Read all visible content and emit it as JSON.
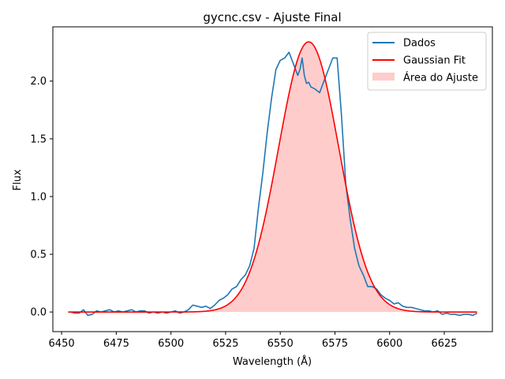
{
  "chart_data": {
    "type": "line",
    "title": "gycnc.csv - Ajuste Final",
    "xlabel": "Wavelength (Å)",
    "ylabel": "Flux",
    "xlim": [
      6446,
      6647
    ],
    "ylim": [
      -0.17,
      2.47
    ],
    "xticks": [
      6450,
      6475,
      6500,
      6525,
      6550,
      6575,
      6600,
      6625
    ],
    "yticks": [
      0.0,
      0.5,
      1.0,
      1.5,
      2.0
    ],
    "grid": false,
    "legend_position": "top-right",
    "series": [
      {
        "name": "Dados",
        "kind": "line",
        "color": "#1f77b4",
        "x": [
          6454,
          6456,
          6458,
          6460,
          6462,
          6464,
          6466,
          6468,
          6470,
          6472,
          6474,
          6476,
          6478,
          6480,
          6482,
          6484,
          6486,
          6488,
          6490,
          6492,
          6494,
          6496,
          6498,
          6500,
          6502,
          6504,
          6506,
          6508,
          6510,
          6512,
          6514,
          6516,
          6518,
          6520,
          6522,
          6524,
          6526,
          6528,
          6530,
          6532,
          6534,
          6536,
          6538,
          6540,
          6542,
          6544,
          6546,
          6548,
          6550,
          6552,
          6554,
          6556,
          6558,
          6559,
          6560,
          6561,
          6562,
          6563,
          6564,
          6566,
          6568,
          6570,
          6572,
          6574,
          6575,
          6576,
          6578,
          6580,
          6582,
          6584,
          6586,
          6588,
          6590,
          6592,
          6594,
          6596,
          6598,
          6600,
          6602,
          6604,
          6606,
          6608,
          6610,
          6612,
          6614,
          6616,
          6618,
          6620,
          6622,
          6624,
          6626,
          6628,
          6630,
          6632,
          6634,
          6636,
          6638,
          6640
        ],
        "y": [
          0.0,
          -0.01,
          -0.01,
          0.02,
          -0.03,
          -0.02,
          0.01,
          0.0,
          0.01,
          0.02,
          0.0,
          0.01,
          0.0,
          0.01,
          0.02,
          0.0,
          0.01,
          0.01,
          -0.01,
          0.0,
          -0.01,
          0.0,
          -0.01,
          0.0,
          0.01,
          -0.01,
          0.0,
          0.02,
          0.06,
          0.05,
          0.04,
          0.05,
          0.03,
          0.06,
          0.1,
          0.12,
          0.15,
          0.2,
          0.22,
          0.28,
          0.32,
          0.4,
          0.55,
          0.9,
          1.2,
          1.55,
          1.85,
          2.1,
          2.18,
          2.2,
          2.25,
          2.15,
          2.05,
          2.1,
          2.2,
          2.05,
          1.98,
          1.99,
          1.95,
          1.93,
          1.9,
          2.0,
          2.1,
          2.2,
          2.2,
          2.2,
          1.7,
          1.1,
          0.8,
          0.55,
          0.4,
          0.32,
          0.22,
          0.22,
          0.2,
          0.15,
          0.12,
          0.1,
          0.07,
          0.08,
          0.05,
          0.04,
          0.04,
          0.03,
          0.02,
          0.01,
          0.01,
          0.0,
          0.01,
          -0.02,
          -0.01,
          -0.02,
          -0.02,
          -0.03,
          -0.02,
          -0.02,
          -0.03,
          -0.01
        ]
      },
      {
        "name": "Gaussian Fit",
        "kind": "gaussian",
        "color": "#ff0000",
        "amplitude": 2.34,
        "center": 6563,
        "sigma": 13.8,
        "x_range": [
          6453,
          6640
        ]
      }
    ],
    "fill": {
      "name": "Área do Ajuste",
      "color": "#ffcccc",
      "under": "Gaussian Fit"
    }
  }
}
